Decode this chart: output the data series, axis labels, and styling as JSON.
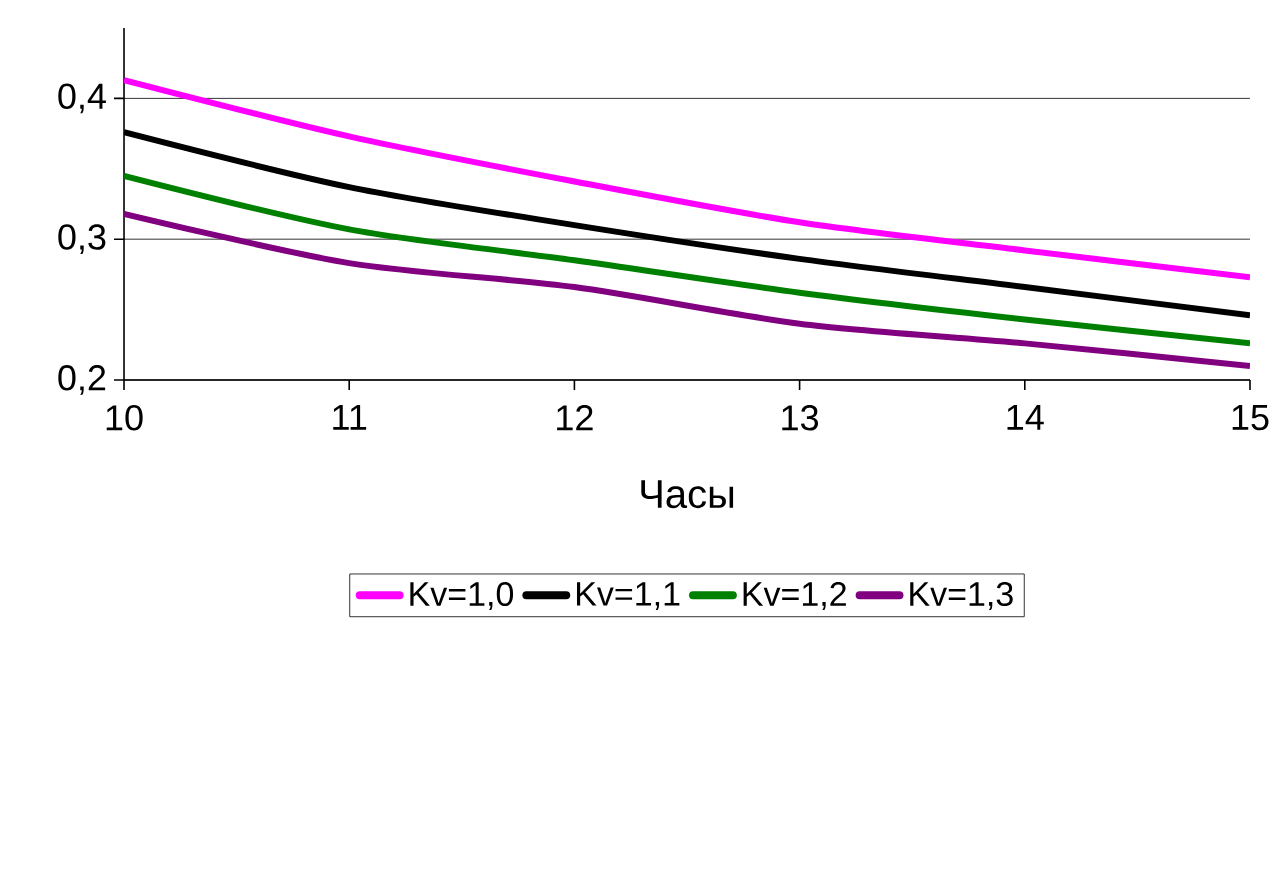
{
  "chart_data": {
    "type": "line",
    "xlabel": "Часы",
    "x": [
      10,
      11,
      12,
      13,
      14,
      15
    ],
    "series": [
      {
        "name": "Kv=1,0",
        "color": "#ff00ff",
        "values": [
          0.413,
          0.373,
          0.341,
          0.312,
          0.292,
          0.273
        ]
      },
      {
        "name": "Kv=1,1",
        "color": "#000000",
        "values": [
          0.376,
          0.337,
          0.31,
          0.286,
          0.266,
          0.246
        ]
      },
      {
        "name": "Kv=1,2",
        "color": "#008000",
        "values": [
          0.345,
          0.307,
          0.285,
          0.262,
          0.243,
          0.226
        ]
      },
      {
        "name": "Kv=1,3",
        "color": "#800080",
        "values": [
          0.318,
          0.283,
          0.266,
          0.24,
          0.226,
          0.21
        ]
      }
    ],
    "xlim": [
      10,
      15
    ],
    "xticks": [
      10,
      11,
      12,
      13,
      14,
      15
    ],
    "ylim": [
      0.2,
      0.45
    ],
    "yticks": [
      {
        "value": 0.2,
        "label": "0,2"
      },
      {
        "value": 0.3,
        "label": "0,3"
      },
      {
        "value": 0.4,
        "label": "0,4"
      }
    ],
    "grid": "y",
    "legend": "bottom",
    "marker": "none",
    "line_style": "solid"
  }
}
